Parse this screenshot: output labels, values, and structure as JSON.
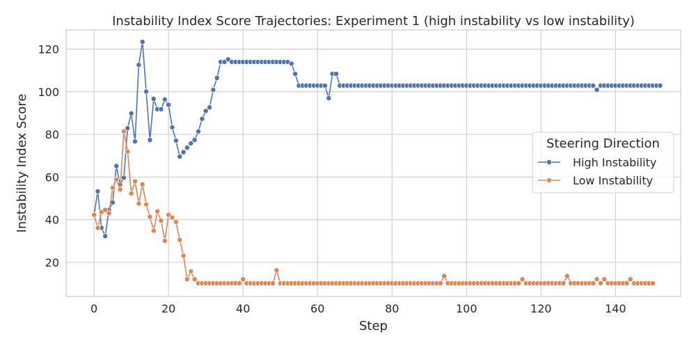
{
  "chart_data": {
    "type": "line",
    "title": "Instability Index Score Trajectories: Experiment 1 (high instability vs low instability)",
    "xlabel": "Step",
    "ylabel": "Instability Index Score",
    "xlim": [
      -7.5,
      157.5
    ],
    "ylim": [
      4,
      129
    ],
    "x_ticks": [
      0,
      20,
      40,
      60,
      80,
      100,
      120,
      140
    ],
    "y_ticks": [
      20,
      40,
      60,
      80,
      100,
      120
    ],
    "grid": true,
    "legend": {
      "title": "Steering Direction",
      "placement": "center-right"
    },
    "series": [
      {
        "name": "High Instability",
        "color": "#4c72b0",
        "values": [
          42.3,
          53.3,
          36.2,
          32.3,
          44.6,
          48.1,
          65.2,
          56.4,
          59.7,
          82.9,
          89.9,
          76.7,
          112.6,
          123.4,
          100.1,
          77.4,
          96.7,
          91.8,
          91.8,
          96.4,
          93.9,
          83.3,
          77.1,
          69.6,
          71.7,
          73.8,
          75.8,
          77.4,
          81.4,
          87.3,
          91.0,
          92.7,
          100.9,
          106.5,
          114.0,
          114.0,
          115.2,
          114.0,
          114.0,
          114.0,
          114.0,
          114.0,
          114.0,
          114.0,
          114.0,
          114.0,
          114.0,
          114.0,
          114.0,
          114.0,
          114.0,
          114.0,
          114.0,
          113.2,
          108.4,
          102.9,
          102.9,
          102.9,
          102.9,
          102.9,
          102.9,
          102.9,
          102.9,
          97.0,
          108.4,
          108.4,
          102.9,
          102.9,
          102.9,
          102.9,
          102.9,
          102.9,
          102.9,
          102.9,
          102.9,
          102.9,
          102.9,
          102.9,
          102.9,
          102.9,
          102.9,
          102.9,
          102.9,
          102.9,
          102.9,
          102.9,
          102.9,
          102.9,
          102.9,
          102.9,
          102.9,
          102.9,
          102.9,
          102.9,
          102.9,
          102.9,
          102.9,
          102.9,
          102.9,
          102.9,
          102.9,
          102.9,
          102.9,
          102.9,
          102.9,
          102.9,
          102.9,
          102.9,
          102.9,
          102.9,
          102.9,
          102.9,
          102.9,
          102.9,
          102.9,
          102.9,
          102.9,
          102.9,
          102.9,
          102.9,
          102.9,
          102.9,
          102.9,
          102.9,
          102.9,
          102.9,
          102.9,
          102.9,
          102.9,
          102.9,
          102.9,
          102.9,
          102.9,
          102.9,
          102.9,
          100.9,
          102.9,
          102.9,
          102.9,
          102.9,
          102.9,
          102.9,
          102.9,
          102.9,
          102.9,
          102.9,
          102.9,
          102.9,
          102.9,
          102.9,
          102.9,
          102.9,
          102.9
        ]
      },
      {
        "name": "Low Instability",
        "color": "#dd8452",
        "values": [
          42.3,
          36.2,
          43.6,
          44.6,
          43.0,
          55.0,
          58.9,
          54.2,
          81.4,
          72.0,
          52.3,
          58.0,
          47.6,
          56.6,
          47.2,
          41.4,
          34.9,
          43.9,
          39.6,
          30.1,
          42.3,
          41.0,
          39.0,
          30.6,
          23.1,
          12.1,
          15.8,
          12.1,
          10.2,
          10.2,
          10.2,
          10.2,
          10.2,
          10.2,
          10.2,
          10.2,
          10.2,
          10.2,
          10.2,
          10.2,
          12.1,
          10.2,
          10.2,
          10.2,
          10.2,
          10.2,
          10.2,
          10.2,
          10.2,
          16.3,
          10.2,
          10.2,
          10.2,
          10.2,
          10.2,
          10.2,
          10.2,
          10.2,
          10.2,
          10.2,
          10.2,
          10.2,
          10.2,
          10.2,
          10.2,
          10.2,
          10.2,
          10.2,
          10.2,
          10.2,
          10.2,
          10.2,
          10.2,
          10.2,
          10.2,
          10.2,
          10.2,
          10.2,
          10.2,
          10.2,
          10.2,
          10.2,
          10.2,
          10.2,
          10.2,
          10.2,
          10.2,
          10.2,
          10.2,
          10.2,
          10.2,
          10.2,
          10.2,
          10.2,
          13.6,
          10.2,
          10.2,
          10.2,
          10.2,
          10.2,
          10.2,
          10.2,
          10.2,
          10.2,
          10.2,
          10.2,
          10.2,
          10.2,
          10.2,
          10.2,
          10.2,
          10.2,
          10.2,
          10.2,
          10.2,
          12.1,
          10.2,
          10.2,
          10.2,
          10.2,
          10.2,
          10.2,
          10.2,
          10.2,
          10.2,
          10.2,
          10.2,
          13.6,
          10.2,
          10.2,
          10.2,
          10.2,
          10.2,
          10.2,
          10.2,
          12.1,
          10.2,
          12.1,
          10.2,
          10.2,
          10.2,
          10.2,
          10.2,
          10.2,
          12.1,
          10.2,
          10.2,
          10.2,
          10.2,
          10.2,
          10.2
        ]
      }
    ]
  }
}
